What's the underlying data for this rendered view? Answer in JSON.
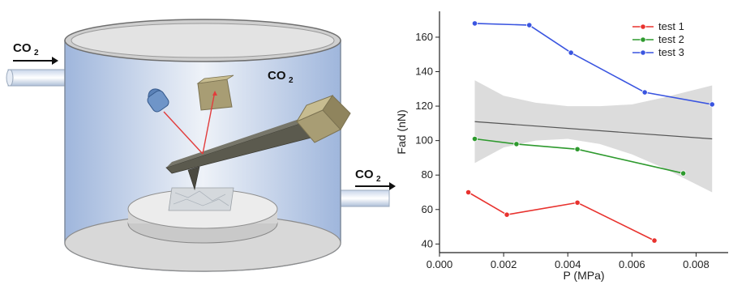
{
  "illustration": {
    "inlet_label": "CO",
    "inlet_sub": "2",
    "chamber_label": "CO",
    "chamber_sub": "2",
    "outlet_label": "CO",
    "outlet_sub": "2",
    "colors": {
      "chamber_fill": "#b9cbe6",
      "chamber_rim": "#d9d9d9",
      "cantilever": "#5b5a4e",
      "tip_block": "#a89d74",
      "detector": "#a89d74",
      "laser_source": "#5b82b8",
      "laser_beam": "#e23c3c",
      "stage": "#e4e4e4"
    }
  },
  "chart_data": {
    "type": "line",
    "xlabel": "P (MPa)",
    "ylabel": "Fad (nN)",
    "xlim": [
      0.0,
      0.009
    ],
    "ylim": [
      35,
      175
    ],
    "xticks": [
      0.0,
      0.002,
      0.004,
      0.006,
      0.008
    ],
    "xtick_labels": [
      "0.000",
      "0.002",
      "0.004",
      "0.006",
      "0.008"
    ],
    "yticks": [
      40,
      60,
      80,
      100,
      120,
      140,
      160
    ],
    "ytick_labels": [
      "40",
      "60",
      "80",
      "100",
      "120",
      "140",
      "160"
    ],
    "legend_position": "top-right",
    "series": [
      {
        "name": "test 1",
        "color": "#e8322e",
        "x": [
          0.0009,
          0.0021,
          0.0043,
          0.0067
        ],
        "y": [
          70,
          57,
          64,
          42
        ]
      },
      {
        "name": "test 2",
        "color": "#2e9a2e",
        "x": [
          0.0011,
          0.0024,
          0.0043,
          0.0076
        ],
        "y": [
          101,
          98,
          95,
          81
        ]
      },
      {
        "name": "test 3",
        "color": "#3a55e0",
        "x": [
          0.0011,
          0.0028,
          0.0041,
          0.0064,
          0.0085
        ],
        "y": [
          168,
          167,
          151,
          128,
          121
        ]
      }
    ],
    "fit_line": {
      "color": "#555555",
      "x": [
        0.0011,
        0.0085
      ],
      "y": [
        111,
        101
      ]
    },
    "confidence_band": {
      "color": "#dcdcdc",
      "x": [
        0.0011,
        0.002,
        0.003,
        0.004,
        0.005,
        0.006,
        0.007,
        0.0085
      ],
      "upper": [
        135,
        126,
        122,
        120,
        120,
        121,
        125,
        132
      ],
      "lower": [
        87,
        96,
        100,
        101,
        98,
        92,
        84,
        70
      ]
    }
  }
}
